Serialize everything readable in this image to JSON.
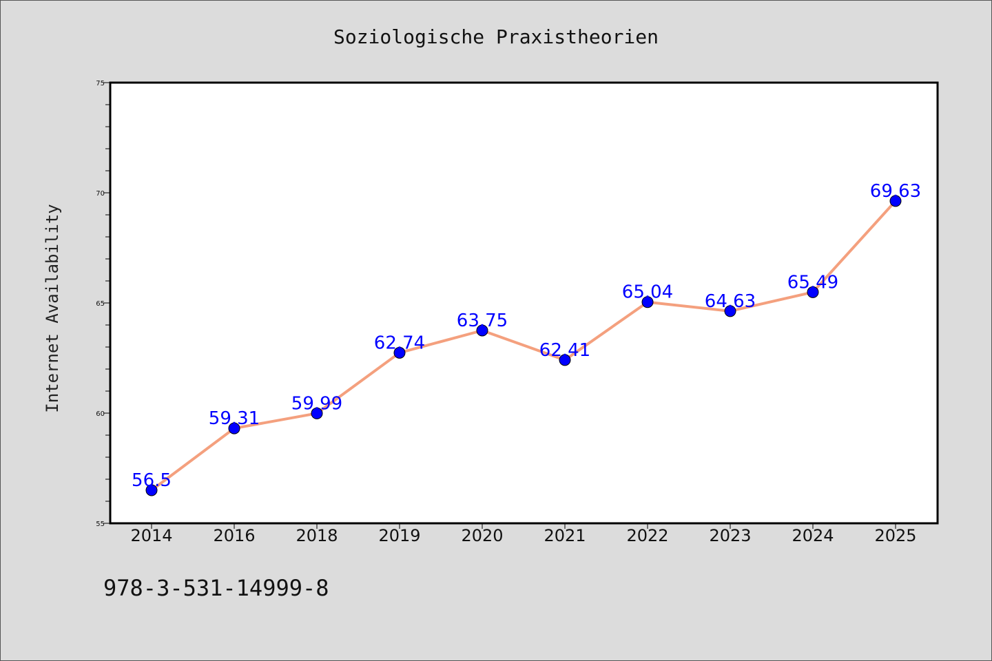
{
  "chart_data": {
    "type": "line",
    "title": "Soziologische Praxistheorien",
    "ylabel": "Internet Availability",
    "xlabel": "",
    "categories": [
      "2014",
      "2016",
      "2018",
      "2019",
      "2020",
      "2021",
      "2022",
      "2023",
      "2024",
      "2025"
    ],
    "series": [
      {
        "values": [
          56.5,
          59.31,
          59.99,
          62.74,
          63.75,
          62.41,
          65.04,
          64.63,
          65.49,
          69.63
        ]
      }
    ],
    "data_labels": [
      "56.5",
      "59.31",
      "59.99",
      "62.74",
      "63.75",
      "62.41",
      "65.04",
      "64.63",
      "65.49",
      "69.63"
    ],
    "ylim": [
      55,
      75
    ],
    "yticks": [
      "55",
      "60",
      "65",
      "70",
      "75"
    ],
    "grid": false,
    "line_color": "#f4a07e",
    "marker_color": "#0000ff",
    "label_color": "#0000ff"
  },
  "footer": {
    "isbn": "978-3-531-14999-8"
  }
}
